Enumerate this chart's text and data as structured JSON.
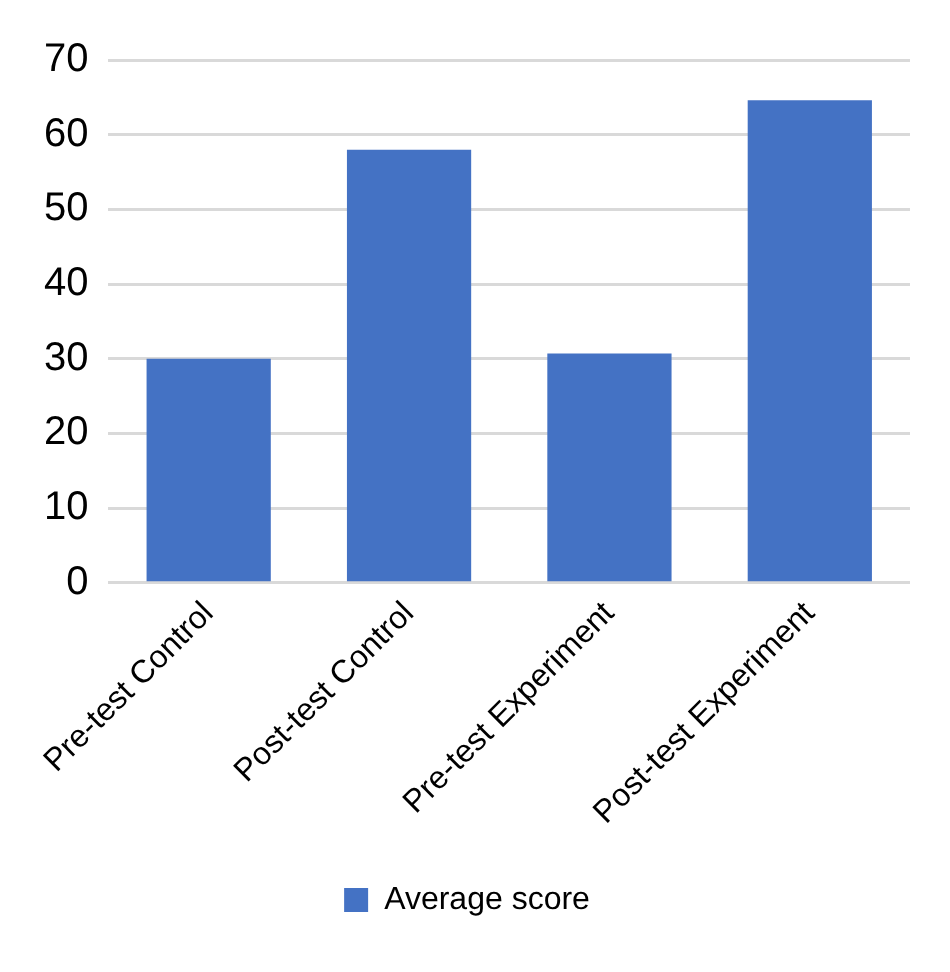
{
  "chart_data": {
    "type": "bar",
    "categories": [
      "Pre-test Control",
      "Post-test Control",
      "Pre-test Experiment",
      "Post-test Experiment"
    ],
    "series": [
      {
        "name": "Average score",
        "color": "#4472c4",
        "values": [
          30,
          58,
          30.7,
          64.6
        ]
      }
    ],
    "ylim": [
      0,
      70
    ],
    "yticks": [
      0,
      10,
      20,
      30,
      40,
      50,
      60,
      70
    ],
    "grid": "y",
    "legend": "bottom"
  }
}
